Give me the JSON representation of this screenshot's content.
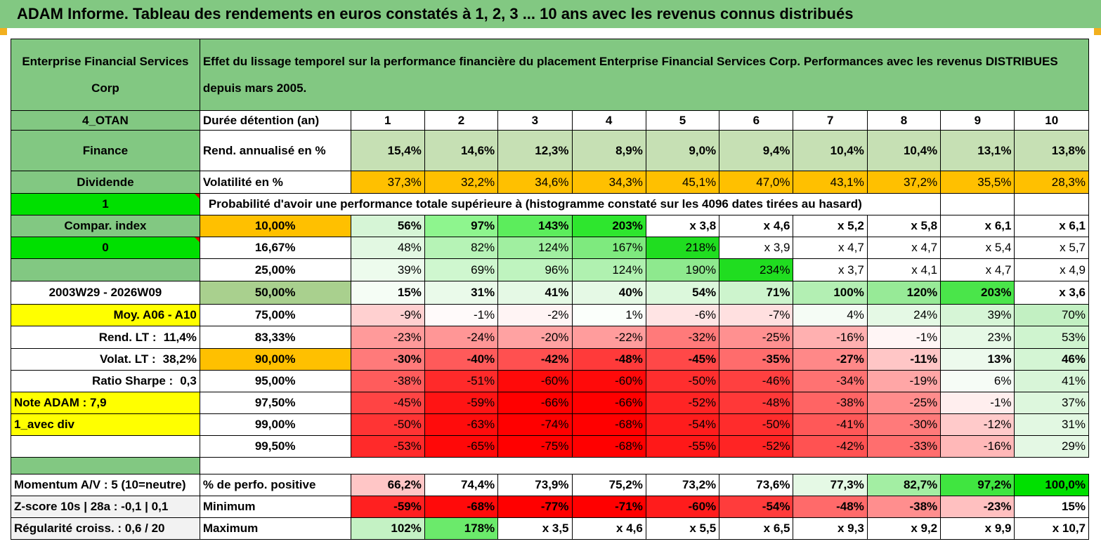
{
  "title": "ADAM Informe. Tableau des rendements en euros constatés à 1, 2, 3 ... 10 ans avec les revenus connus distribués",
  "header": {
    "company": "Enterprise Financial Services Corp",
    "description": "Effet du lissage temporel sur la performance financière du placement Enterprise Financial Services Corp. Performances avec les revenus DISTRIBUES depuis mars 2005."
  },
  "side": {
    "code": "4_OTAN",
    "sector": "Finance",
    "type": "Dividende",
    "flag1": "1",
    "compar_index": "Compar. index",
    "flag0": "0",
    "period": "2003W29 - 2026W09",
    "moy": "Moy. A06 - A10",
    "rend_lt_label": "Rend. LT :",
    "rend_lt_value": "11,4%",
    "volat_lt_label": "Volat. LT :",
    "volat_lt_value": "38,2%",
    "sharpe_label": "Ratio Sharpe :",
    "sharpe_value": "0,3",
    "note": "Note ADAM : 7,9",
    "div": "1_avec div",
    "momentum": "Momentum A/V : 5 (10=neutre)",
    "zscore": "Z-score 10s | 28a : -0,1 | 0,1",
    "regularite": "Régularité croiss. : 0,6 / 20"
  },
  "labels": {
    "duree": "Durée détention (an)",
    "rend": "Rend. annualisé en %",
    "vol": "Volatilité en %",
    "proba": "Probabilité d'avoir une performance totale supérieure à (histogramme constaté sur les 4096 dates tirées au hasard)",
    "perf_pos": "% de perfo. positive",
    "minimum": "Minimum",
    "maximum": "Maximum"
  },
  "years": [
    "1",
    "2",
    "3",
    "4",
    "5",
    "6",
    "7",
    "8",
    "9",
    "10"
  ],
  "rend": [
    "15,4%",
    "14,6%",
    "12,3%",
    "8,9%",
    "9,0%",
    "9,4%",
    "10,4%",
    "10,4%",
    "13,1%",
    "13,8%"
  ],
  "vol": [
    "37,3%",
    "32,2%",
    "34,6%",
    "34,3%",
    "45,1%",
    "47,0%",
    "43,1%",
    "37,2%",
    "35,5%",
    "28,3%"
  ],
  "quantiles": [
    {
      "p": "10,00%",
      "vals": [
        "56%",
        "97%",
        "143%",
        "203%",
        "x 3,8",
        "x 4,6",
        "x 5,2",
        "x 5,8",
        "x 6,1",
        "x 6,1"
      ]
    },
    {
      "p": "16,67%",
      "vals": [
        "48%",
        "82%",
        "124%",
        "167%",
        "218%",
        "x 3,9",
        "x 4,7",
        "x 4,7",
        "x 5,4",
        "x 5,7"
      ]
    },
    {
      "p": "25,00%",
      "vals": [
        "39%",
        "69%",
        "96%",
        "124%",
        "190%",
        "234%",
        "x 3,7",
        "x 4,1",
        "x 4,7",
        "x 4,9"
      ]
    },
    {
      "p": "50,00%",
      "vals": [
        "15%",
        "31%",
        "41%",
        "40%",
        "54%",
        "71%",
        "100%",
        "120%",
        "203%",
        "x 3,6"
      ]
    },
    {
      "p": "75,00%",
      "vals": [
        "-9%",
        "-1%",
        "-2%",
        "1%",
        "-6%",
        "-7%",
        "4%",
        "24%",
        "39%",
        "70%"
      ]
    },
    {
      "p": "83,33%",
      "vals": [
        "-23%",
        "-24%",
        "-20%",
        "-22%",
        "-32%",
        "-25%",
        "-16%",
        "-1%",
        "23%",
        "53%"
      ]
    },
    {
      "p": "90,00%",
      "vals": [
        "-30%",
        "-40%",
        "-42%",
        "-48%",
        "-45%",
        "-35%",
        "-27%",
        "-11%",
        "13%",
        "46%"
      ]
    },
    {
      "p": "95,00%",
      "vals": [
        "-38%",
        "-51%",
        "-60%",
        "-60%",
        "-50%",
        "-46%",
        "-34%",
        "-19%",
        "6%",
        "41%"
      ]
    },
    {
      "p": "97,50%",
      "vals": [
        "-45%",
        "-59%",
        "-66%",
        "-66%",
        "-52%",
        "-48%",
        "-38%",
        "-25%",
        "-1%",
        "37%"
      ]
    },
    {
      "p": "99,00%",
      "vals": [
        "-50%",
        "-63%",
        "-74%",
        "-68%",
        "-54%",
        "-50%",
        "-41%",
        "-30%",
        "-12%",
        "31%"
      ]
    },
    {
      "p": "99,50%",
      "vals": [
        "-53%",
        "-65%",
        "-75%",
        "-68%",
        "-55%",
        "-52%",
        "-42%",
        "-33%",
        "-16%",
        "29%"
      ]
    }
  ],
  "perf_pos": [
    "66,2%",
    "74,4%",
    "73,9%",
    "75,2%",
    "73,2%",
    "73,6%",
    "77,3%",
    "82,7%",
    "97,2%",
    "100,0%"
  ],
  "minimum": [
    "-59%",
    "-68%",
    "-77%",
    "-71%",
    "-60%",
    "-54%",
    "-48%",
    "-38%",
    "-23%",
    "15%"
  ],
  "maximum": [
    "102%",
    "178%",
    "x 3,5",
    "x 4,6",
    "x 5,5",
    "x 6,5",
    "x 9,3",
    "x 9,2",
    "x 9,9",
    "x 10,7"
  ],
  "colors": {
    "header_green": "#82c882",
    "bright_green": "#00e000",
    "yellow": "#ffff00",
    "orange": "#ffc000",
    "red": "#ff0000",
    "side_red_text": "#e00000"
  },
  "quantile_colors": [
    [
      "#d6f5d6",
      "#8ef58e",
      "#5ced5c",
      "#2ee62e",
      "#ffffff",
      "#ffffff",
      "#ffffff",
      "#ffffff",
      "#ffffff",
      "#ffffff"
    ],
    [
      "#e2f8e2",
      "#b6f3b6",
      "#a0efa0",
      "#7eea7e",
      "#20dd20",
      "#ffffff",
      "#ffffff",
      "#ffffff",
      "#ffffff",
      "#ffffff"
    ],
    [
      "#edfbed",
      "#cff7cf",
      "#bff4bf",
      "#b0f1b0",
      "#8ee98e",
      "#20dd20",
      "#ffffff",
      "#ffffff",
      "#ffffff",
      "#ffffff"
    ],
    [
      "#f5fdf5",
      "#eafaea",
      "#e5f9e5",
      "#e5f9e5",
      "#dcf8dc",
      "#cdf4cd",
      "#b3efb3",
      "#97ea97",
      "#4ae54a",
      "#ffffff"
    ],
    [
      "#ffd0d0",
      "#fffafa",
      "#fff4f4",
      "#fbfffb",
      "#ffe4e4",
      "#ffe0e0",
      "#f5fcf5",
      "#e5f9e5",
      "#d6f5d6",
      "#c2f0c2"
    ],
    [
      "#ff9a9a",
      "#ff9696",
      "#ffa2a2",
      "#ff9c9c",
      "#ff7a7a",
      "#ff9090",
      "#ffb0b0",
      "#fff5f5",
      "#e6f9e6",
      "#cff4cf"
    ],
    [
      "#ff7a7a",
      "#ff5a5a",
      "#ff5050",
      "#ff3a3a",
      "#ff4848",
      "#ff6c6c",
      "#ff8888",
      "#ffc6c6",
      "#edfaed",
      "#d4f5d4"
    ],
    [
      "#ff5c5c",
      "#ff2a2a",
      "#ff0a0a",
      "#ff0a0a",
      "#ff2e2e",
      "#ff4040",
      "#ff7272",
      "#ffa6a6",
      "#f6fcf6",
      "#d8f5d8"
    ],
    [
      "#ff4444",
      "#ff1414",
      "#ff0000",
      "#ff0000",
      "#ff2424",
      "#ff3838",
      "#ff6464",
      "#ff8c8c",
      "#ffeeee",
      "#ddf7dd"
    ],
    [
      "#ff3434",
      "#ff0c0c",
      "#ff0000",
      "#ff0000",
      "#ff1c1c",
      "#ff2c2c",
      "#ff5858",
      "#ff7a7a",
      "#ffcaca",
      "#e2f8e2"
    ],
    [
      "#ff2a2a",
      "#ff0808",
      "#ff0000",
      "#ff0000",
      "#ff1818",
      "#ff2424",
      "#ff5252",
      "#ff6e6e",
      "#ffb8b8",
      "#e4f8e4"
    ]
  ],
  "perf_pos_colors": [
    "#ffc6c6",
    "#ffffff",
    "#ffffff",
    "#ffffff",
    "#ffffff",
    "#ffffff",
    "#e5f9e5",
    "#a3eea3",
    "#40e540",
    "#00e000"
  ],
  "minimum_colors": [
    "#ff2020",
    "#ff0a0a",
    "#ff0000",
    "#ff0000",
    "#ff1c1c",
    "#ff3c3c",
    "#ff6a6a",
    "#ff8e8e",
    "#ffc0c0",
    "#ffffff"
  ],
  "maximum_colors": [
    "#c4f2c4",
    "#6bea6b",
    "#ffffff",
    "#ffffff",
    "#ffffff",
    "#ffffff",
    "#ffffff",
    "#ffffff",
    "#ffffff",
    "#ffffff"
  ]
}
